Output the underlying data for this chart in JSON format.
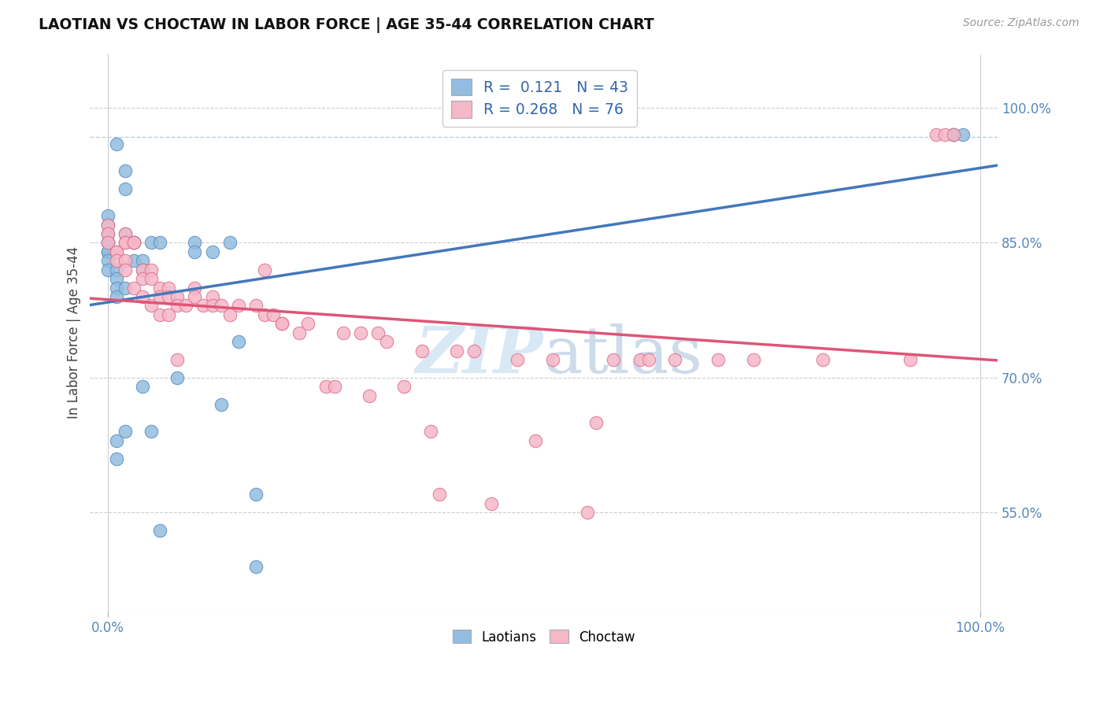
{
  "title": "LAOTIAN VS CHOCTAW IN LABOR FORCE | AGE 35-44 CORRELATION CHART",
  "source_text": "Source: ZipAtlas.com",
  "ylabel": "In Labor Force | Age 35-44",
  "xlim": [
    -0.02,
    1.02
  ],
  "ylim": [
    0.44,
    1.06
  ],
  "ytick_positions": [
    0.55,
    0.7,
    0.85,
    1.0
  ],
  "yticklabels": [
    "55.0%",
    "70.0%",
    "85.0%",
    "100.0%"
  ],
  "laotian_color": "#92bde0",
  "laotian_edge_color": "#5b8fc0",
  "choctaw_color": "#f5b8c8",
  "choctaw_edge_color": "#e07090",
  "laotian_R": 0.121,
  "laotian_N": 43,
  "choctaw_R": 0.268,
  "choctaw_N": 76,
  "trend_blue_color": "#4477bb",
  "trend_pink_color": "#dd5577",
  "trend_dashed_color": "#99bbdd",
  "legend_label_1": "Laotians",
  "legend_label_2": "Choctaw",
  "watermark_color": "#d8e8f5",
  "laotian_x": [
    0.0,
    0.0,
    0.0,
    0.0,
    0.0,
    0.0,
    0.0,
    0.0,
    0.0,
    0.01,
    0.01,
    0.01,
    0.01,
    0.01,
    0.01,
    0.01,
    0.02,
    0.02,
    0.02,
    0.02,
    0.02,
    0.03,
    0.03,
    0.03,
    0.04,
    0.04,
    0.04,
    0.05,
    0.05,
    0.06,
    0.06,
    0.08,
    0.1,
    0.1,
    0.12,
    0.13,
    0.14,
    0.15,
    0.17,
    0.17,
    0.97,
    0.97,
    0.98
  ],
  "laotian_y": [
    0.88,
    0.87,
    0.86,
    0.85,
    0.85,
    0.84,
    0.84,
    0.83,
    0.82,
    0.82,
    0.81,
    0.8,
    0.79,
    0.63,
    0.61,
    0.96,
    0.93,
    0.91,
    0.8,
    0.64,
    0.86,
    0.85,
    0.83,
    0.85,
    0.83,
    0.82,
    0.69,
    0.85,
    0.64,
    0.85,
    0.53,
    0.7,
    0.85,
    0.84,
    0.84,
    0.67,
    0.85,
    0.74,
    0.57,
    0.49,
    0.97,
    0.97,
    0.97
  ],
  "choctaw_x": [
    0.0,
    0.0,
    0.0,
    0.01,
    0.01,
    0.01,
    0.02,
    0.02,
    0.02,
    0.02,
    0.02,
    0.03,
    0.03,
    0.03,
    0.04,
    0.04,
    0.04,
    0.05,
    0.05,
    0.05,
    0.06,
    0.06,
    0.06,
    0.07,
    0.07,
    0.07,
    0.08,
    0.08,
    0.08,
    0.09,
    0.1,
    0.1,
    0.11,
    0.12,
    0.12,
    0.13,
    0.14,
    0.15,
    0.17,
    0.18,
    0.18,
    0.19,
    0.2,
    0.2,
    0.22,
    0.23,
    0.25,
    0.26,
    0.27,
    0.29,
    0.3,
    0.31,
    0.32,
    0.34,
    0.36,
    0.37,
    0.38,
    0.4,
    0.42,
    0.44,
    0.47,
    0.49,
    0.51,
    0.55,
    0.56,
    0.58,
    0.61,
    0.62,
    0.65,
    0.7,
    0.74,
    0.82,
    0.92,
    0.95,
    0.96,
    0.97
  ],
  "choctaw_y": [
    0.87,
    0.86,
    0.85,
    0.84,
    0.84,
    0.83,
    0.86,
    0.85,
    0.85,
    0.83,
    0.82,
    0.85,
    0.85,
    0.8,
    0.82,
    0.81,
    0.79,
    0.82,
    0.81,
    0.78,
    0.8,
    0.79,
    0.77,
    0.8,
    0.79,
    0.77,
    0.79,
    0.78,
    0.72,
    0.78,
    0.8,
    0.79,
    0.78,
    0.79,
    0.78,
    0.78,
    0.77,
    0.78,
    0.78,
    0.82,
    0.77,
    0.77,
    0.76,
    0.76,
    0.75,
    0.76,
    0.69,
    0.69,
    0.75,
    0.75,
    0.68,
    0.75,
    0.74,
    0.69,
    0.73,
    0.64,
    0.57,
    0.73,
    0.73,
    0.56,
    0.72,
    0.63,
    0.72,
    0.55,
    0.65,
    0.72,
    0.72,
    0.72,
    0.72,
    0.72,
    0.72,
    0.72,
    0.72,
    0.97,
    0.97,
    0.97
  ]
}
